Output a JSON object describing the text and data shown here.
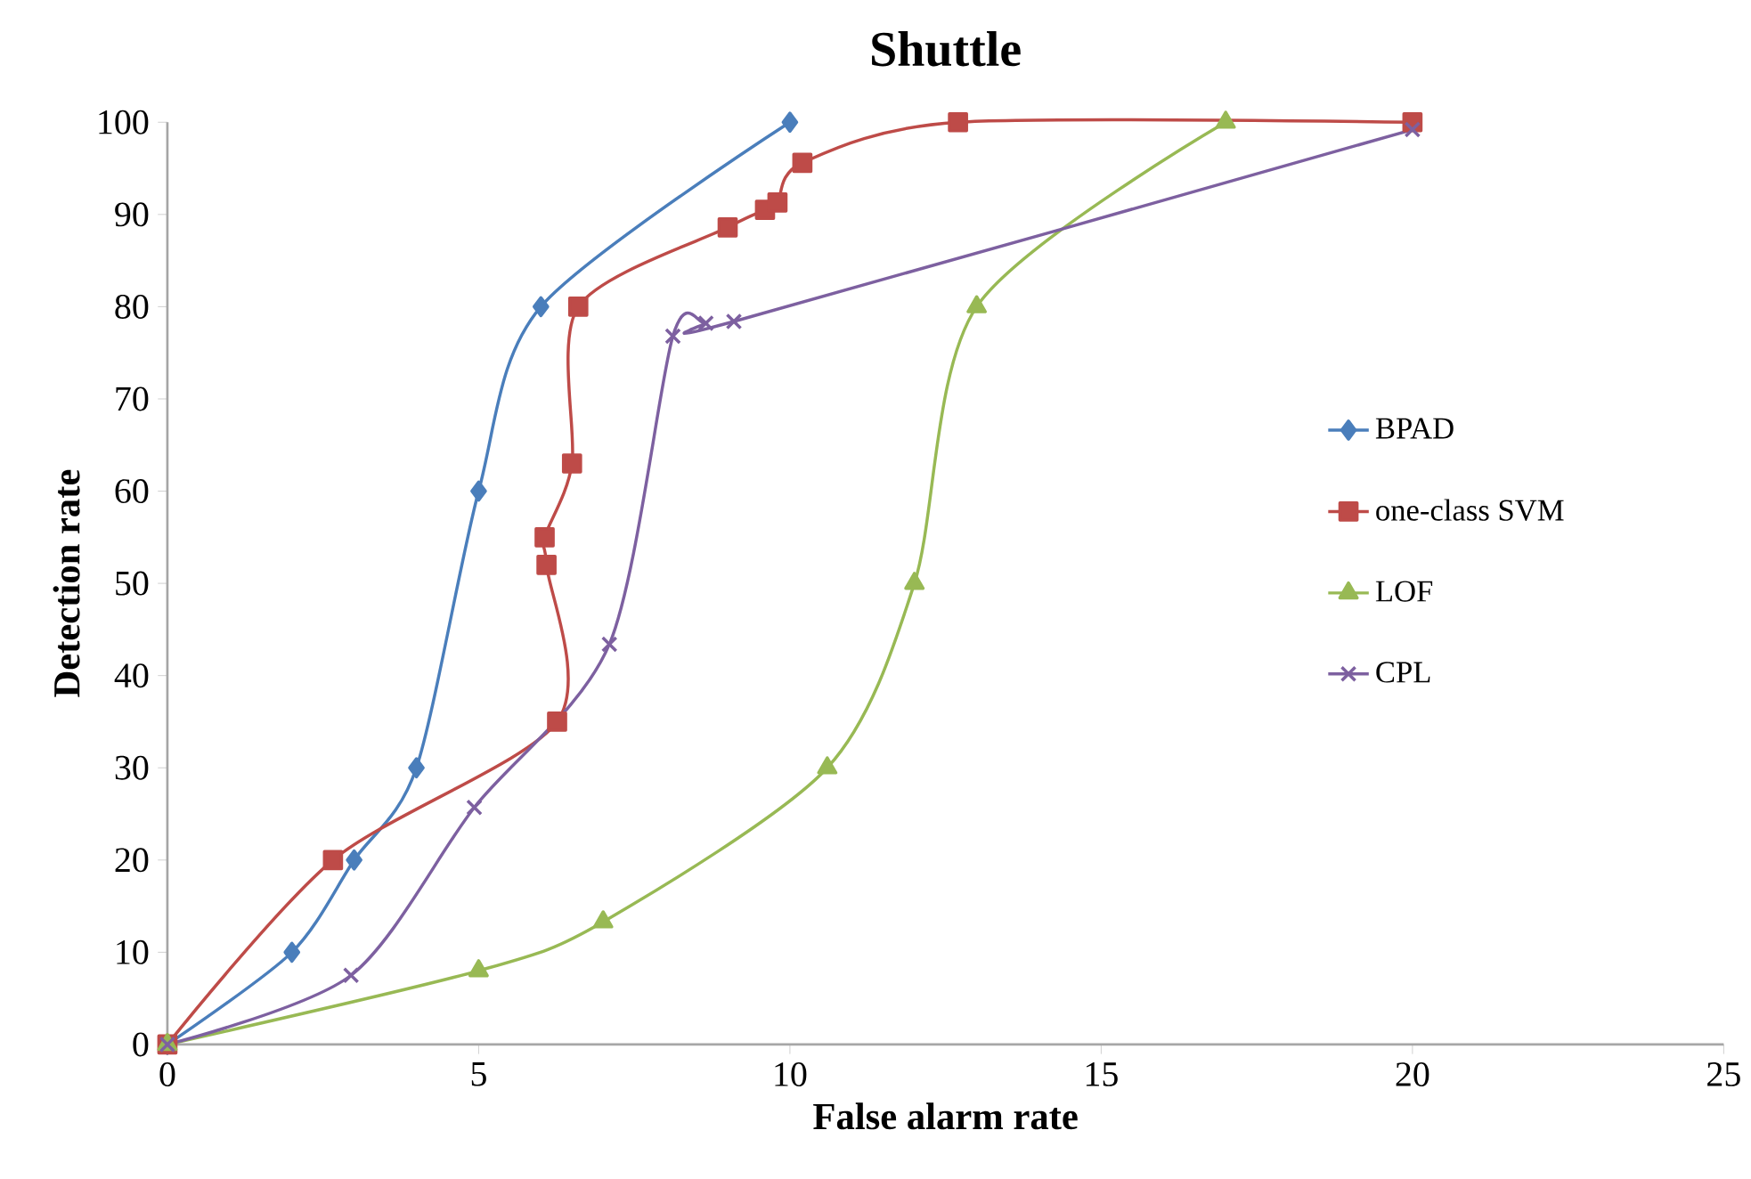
{
  "chart_data": {
    "type": "line",
    "title": "Shuttle",
    "xlabel": "False alarm rate",
    "ylabel": "Detection rate",
    "xlim": [
      0,
      25
    ],
    "xticks": [
      0,
      5,
      10,
      15,
      20,
      25
    ],
    "ylim": [
      0,
      100
    ],
    "yticks": [
      0,
      10,
      20,
      30,
      40,
      50,
      60,
      70,
      80,
      90,
      100
    ],
    "grid": false,
    "legend": "right",
    "line_style": "solid",
    "series": [
      {
        "name": "BPAD",
        "color": "#4a7ebb",
        "marker": "diamond",
        "x": [
          0,
          2,
          3,
          4,
          5,
          6,
          10
        ],
        "values": [
          0,
          10,
          20,
          30,
          60,
          80,
          100
        ]
      },
      {
        "name": "one-class SVM",
        "color": "#be4b48",
        "marker": "square",
        "x": [
          0,
          2.66,
          6.26,
          6.09,
          6.06,
          6.5,
          6.6,
          9.0,
          9.6,
          9.8,
          10.2,
          12.7,
          20
        ],
        "values": [
          0,
          20,
          35,
          52,
          55,
          63,
          80,
          88.6,
          90.5,
          91.3,
          95.6,
          100,
          100
        ]
      },
      {
        "name": "LOF",
        "color": "#98b954",
        "marker": "triangle",
        "x": [
          0,
          5,
          7,
          10.6,
          12,
          13,
          17
        ],
        "values": [
          0,
          8,
          13.3,
          30,
          50,
          80,
          100
        ]
      },
      {
        "name": "CPL",
        "color": "#7d60a0",
        "marker": "cross",
        "x": [
          0,
          2.95,
          4.93,
          7.1,
          8.12,
          8.65,
          9.1,
          20
        ],
        "values": [
          0,
          7.5,
          25.7,
          43.4,
          76.8,
          78.2,
          78.4,
          99.2
        ]
      }
    ]
  }
}
